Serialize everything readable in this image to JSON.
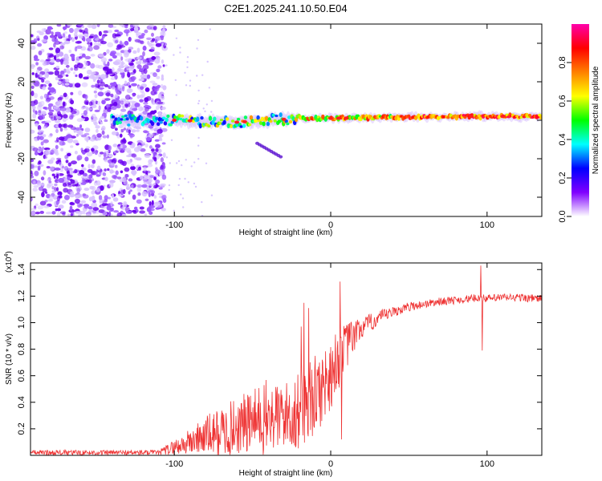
{
  "title": "C2E1.2025.241.10.50.E04",
  "chart_data": [
    {
      "type": "heatmap",
      "xlabel": "Height of straight line (km)",
      "ylabel": "Frequency (Hz)",
      "xlim": [
        -192,
        135
      ],
      "ylim": [
        -50,
        50
      ],
      "xticks": [
        -100,
        0,
        100
      ],
      "yticks": [
        -40,
        -20,
        0,
        20,
        40
      ],
      "xtick_labels": [
        "-100",
        "0",
        "100"
      ],
      "ytick_labels": [
        "-40",
        "-20",
        "0",
        "20",
        "40"
      ],
      "noise_region_x": [
        -192,
        -106
      ],
      "signal_band": [
        {
          "x": -100,
          "f": 0
        },
        {
          "x": -60,
          "f": -1
        },
        {
          "x": -20,
          "f": 1
        },
        {
          "x": 0,
          "f": 1
        },
        {
          "x": 40,
          "f": 1.5
        },
        {
          "x": 90,
          "f": 2
        },
        {
          "x": 135,
          "f": 2
        }
      ],
      "streak": [
        {
          "x": -47,
          "f": -12
        },
        {
          "x": -32,
          "f": -19
        }
      ],
      "colorbar": {
        "label": "Normalized spectral amplitude",
        "range": [
          0,
          1
        ],
        "ticks": [
          0.0,
          0.2,
          0.4,
          0.6,
          0.8
        ],
        "tick_labels": [
          "0.0",
          "0.2",
          "0.4",
          "0.6",
          "0.8"
        ],
        "colors": [
          "#ffffff",
          "#8000ff",
          "#0000ff",
          "#00ffff",
          "#00ff00",
          "#ffff00",
          "#ff8000",
          "#ff0000",
          "#ff00aa"
        ]
      }
    },
    {
      "type": "line",
      "xlabel": "Height of straight line (km)",
      "ylabel": "SNR (10 * v/v)",
      "scale_label": "(x10",
      "scale_exponent": "4",
      "scale_close": ")",
      "xlim": [
        -192,
        135
      ],
      "ylim": [
        0,
        1.45
      ],
      "xticks": [
        -100,
        0,
        100
      ],
      "yticks": [
        0.2,
        0.4,
        0.6,
        0.8,
        1.0,
        1.2,
        1.4
      ],
      "xtick_labels": [
        "-100",
        "0",
        "100"
      ],
      "ytick_labels": [
        "0.2",
        "0.4",
        "0.6",
        "0.8",
        "1.0",
        "1.2",
        "1.4"
      ],
      "color": "#ee3333",
      "trend": {
        "x": [
          -192,
          -110,
          -100,
          -90,
          -80,
          -70,
          -60,
          -50,
          -40,
          -30,
          -20,
          -15,
          -10,
          -5,
          0,
          5,
          10,
          15,
          20,
          30,
          40,
          50,
          60,
          70,
          80,
          90,
          95,
          100,
          110,
          120,
          135
        ],
        "y": [
          0.02,
          0.02,
          0.06,
          0.1,
          0.15,
          0.17,
          0.22,
          0.25,
          0.28,
          0.3,
          0.32,
          0.4,
          0.45,
          0.52,
          0.62,
          0.72,
          0.82,
          0.9,
          0.96,
          1.03,
          1.08,
          1.12,
          1.14,
          1.16,
          1.17,
          1.18,
          1.19,
          1.18,
          1.19,
          1.19,
          1.18
        ]
      },
      "noise": {
        "x": [
          -192,
          -110,
          -100,
          -90,
          -80,
          -70,
          -60,
          -50,
          -40,
          -30,
          -20,
          -10,
          0,
          10,
          20,
          40,
          60,
          80,
          100,
          135
        ],
        "amp": [
          0.02,
          0.02,
          0.06,
          0.1,
          0.15,
          0.2,
          0.22,
          0.25,
          0.3,
          0.25,
          0.3,
          0.3,
          0.28,
          0.18,
          0.08,
          0.04,
          0.03,
          0.03,
          0.03,
          0.03
        ]
      },
      "spikes": [
        {
          "x": -19,
          "y": 0.97
        },
        {
          "x": -17,
          "y": 1.15
        },
        {
          "x": -14,
          "y": 1.11
        },
        {
          "x": 6,
          "y": 1.31
        },
        {
          "x": 7,
          "y": 0.12
        },
        {
          "x": 11,
          "y": 0.95
        },
        {
          "x": 96,
          "y": 1.43
        },
        {
          "x": 97,
          "y": 0.79
        }
      ]
    }
  ]
}
